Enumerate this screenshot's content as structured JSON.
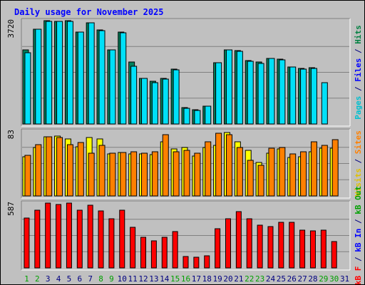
{
  "chart_data": {
    "type": "bar",
    "title": "Daily usage for November 2025",
    "categories": [
      "1",
      "2",
      "3",
      "4",
      "5",
      "6",
      "7",
      "8",
      "9",
      "10",
      "11",
      "12",
      "13",
      "14",
      "15",
      "16",
      "17",
      "18",
      "19",
      "20",
      "21",
      "22",
      "23",
      "24",
      "25",
      "26",
      "27",
      "28",
      "29",
      "30",
      "31"
    ],
    "weekend_days": [
      1,
      2,
      8,
      9,
      15,
      16,
      22,
      23,
      29,
      30
    ],
    "panels": [
      {
        "name": "hits-files-pages",
        "y_max_label": "3720",
        "ylim": [
          0,
          3720
        ],
        "right_label_parts": [
          {
            "text": "Pages",
            "color": "#00c0d0"
          },
          {
            "text": " / ",
            "color": "#000080"
          },
          {
            "text": "Files",
            "color": "#0000ff"
          },
          {
            "text": " / ",
            "color": "#000080"
          },
          {
            "text": "Hits",
            "color": "#008040"
          }
        ],
        "series": [
          {
            "name": "Hits",
            "color": "#00805c",
            "values": [
              2660,
              3420,
              3720,
              3700,
              3720,
              3300,
              3650,
              3380,
              2680,
              3300,
              2240,
              1650,
              1530,
              1650,
              1980,
              590,
              520,
              640,
              2200,
              2680,
              2630,
              2280,
              2220,
              2360,
              2330,
              2060,
              2000,
              2020,
              null,
              null,
              null
            ]
          },
          {
            "name": "Files",
            "color": "#00e0f8",
            "values": [
              2560,
              3400,
              3690,
              3690,
              3700,
              3300,
              3650,
              3360,
              2660,
              3280,
              2080,
              1640,
              1500,
              1620,
              1960,
              560,
              500,
              640,
              2200,
              2660,
              2620,
              2260,
              2180,
              2360,
              2300,
              2050,
              1970,
              1990,
              1500,
              null,
              null
            ]
          }
        ]
      },
      {
        "name": "visits-sites",
        "y_max_label": "83",
        "ylim": [
          0,
          83
        ],
        "right_label_parts": [
          {
            "text": "Visits",
            "color": "#e0c000"
          },
          {
            "text": " / ",
            "color": "#000080"
          },
          {
            "text": "Sites",
            "color": "#ff8000"
          }
        ],
        "series": [
          {
            "name": "Visits",
            "color": "#ffff00",
            "values": [
              50,
              62,
              76,
              77,
              73,
              63,
              75,
              73,
              54,
              56,
              54,
              54,
              53,
              69,
              60,
              62,
              51,
              62,
              65,
              81,
              69,
              58,
              43,
              55,
              60,
              49,
              50,
              57,
              61,
              61,
              null
            ]
          },
          {
            "name": "Sites",
            "color": "#ff8000",
            "values": [
              52,
              66,
              76,
              75,
              66,
              68,
              55,
              65,
              55,
              56,
              57,
              55,
              57,
              78,
              57,
              58,
              55,
              69,
              80,
              78,
              62,
              46,
              39,
              61,
              62,
              54,
              57,
              69,
              65,
              72,
              null
            ]
          }
        ]
      },
      {
        "name": "kb-f",
        "y_max_label": "587",
        "ylim": [
          0,
          587
        ],
        "right_label_parts": [
          {
            "text": "kB F",
            "color": "#ff0000"
          },
          {
            "text": " / ",
            "color": "#000080"
          },
          {
            "text": "kB In",
            "color": "#0000ff"
          },
          {
            "text": " / ",
            "color": "#000080"
          },
          {
            "text": "kB Out",
            "color": "#00a000"
          }
        ],
        "series": [
          {
            "name": "kB F",
            "color": "#ff0000",
            "values": [
              450,
              525,
              587,
              575,
              585,
              525,
              570,
              515,
              448,
              522,
              369,
              278,
              247,
              275,
              331,
              104,
              94,
              109,
              354,
              447,
              510,
              448,
              388,
              373,
              413,
              411,
              344,
              333,
              344,
              239,
              null
            ]
          }
        ]
      }
    ]
  }
}
